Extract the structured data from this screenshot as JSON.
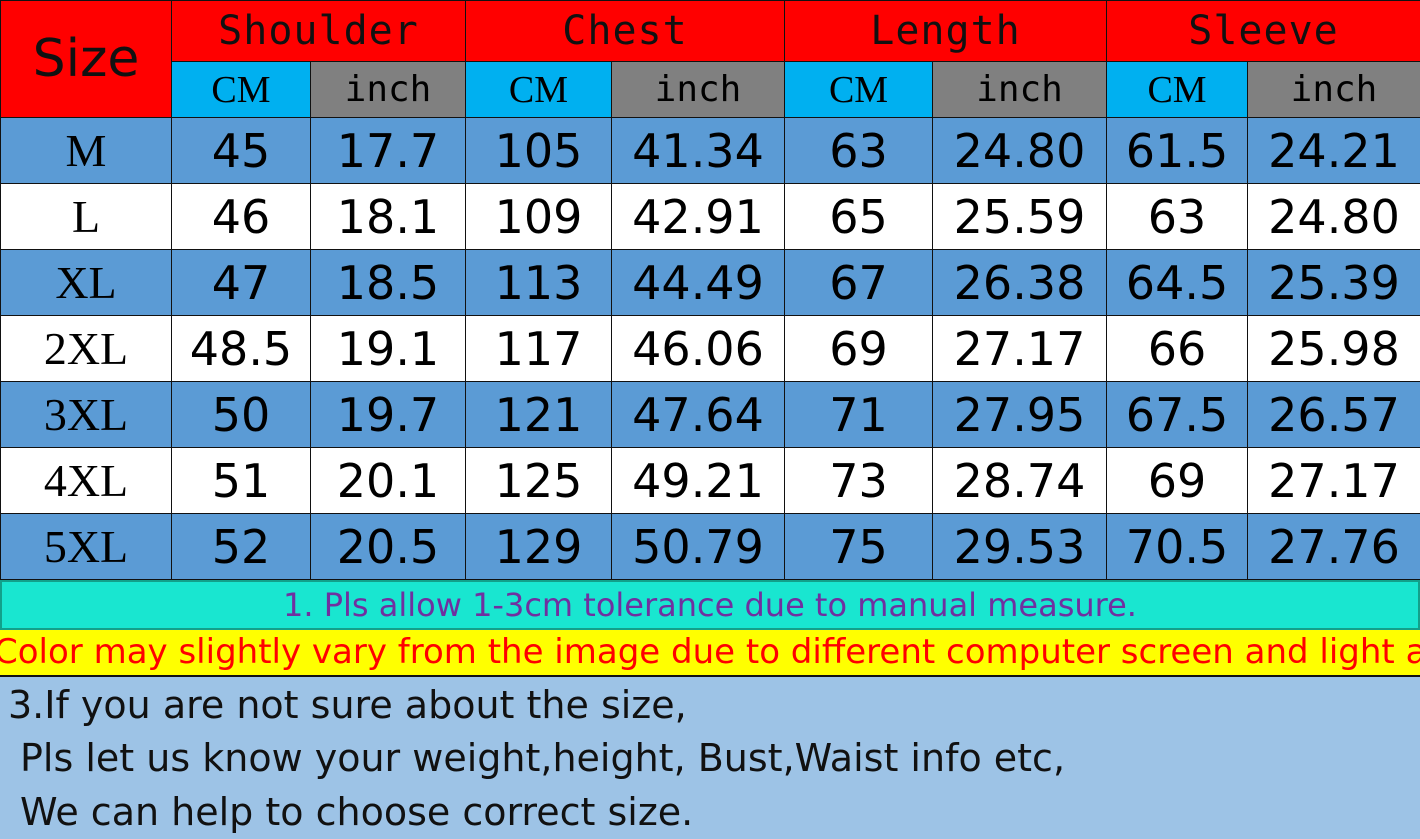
{
  "header": {
    "size": "Size",
    "groups": [
      "Shoulder",
      "Chest",
      "Length",
      "Sleeve"
    ],
    "units": [
      "CM",
      "inch"
    ]
  },
  "colors": {
    "header": "#ff0000",
    "cm": "#00b0f0",
    "inch": "#808080",
    "row_blue": "#5b9bd5",
    "row_white": "#ffffff",
    "note1_bg": "#19e6d0",
    "note1_text": "#7030a0",
    "note2_bg": "#ffff00",
    "note2_text": "#ff0000",
    "bottom_bg": "#9dc3e6"
  },
  "rows": [
    [
      "M",
      "45",
      "17.7",
      "105",
      "41.34",
      "63",
      "24.80",
      "61.5",
      "24.21"
    ],
    [
      "L",
      "46",
      "18.1",
      "109",
      "42.91",
      "65",
      "25.59",
      "63",
      "24.80"
    ],
    [
      "XL",
      "47",
      "18.5",
      "113",
      "44.49",
      "67",
      "26.38",
      "64.5",
      "25.39"
    ],
    [
      "2XL",
      "48.5",
      "19.1",
      "117",
      "46.06",
      "69",
      "27.17",
      "66",
      "25.98"
    ],
    [
      "3XL",
      "50",
      "19.7",
      "121",
      "47.64",
      "71",
      "27.95",
      "67.5",
      "26.57"
    ],
    [
      "4XL",
      "51",
      "20.1",
      "125",
      "49.21",
      "73",
      "28.74",
      "69",
      "27.17"
    ],
    [
      "5XL",
      "52",
      "20.5",
      "129",
      "50.79",
      "75",
      "29.53",
      "70.5",
      "27.76"
    ]
  ],
  "notes": {
    "note1": "1. Pls allow 1-3cm tolerance due to manual measure.",
    "note2": "Color may slightly vary from the image due to different computer screen and light affe",
    "note3": [
      "3.If you are not sure about the size,",
      "Pls let us know your weight,height, Bust,Waist info etc,",
      "We can help to choose correct size."
    ]
  }
}
